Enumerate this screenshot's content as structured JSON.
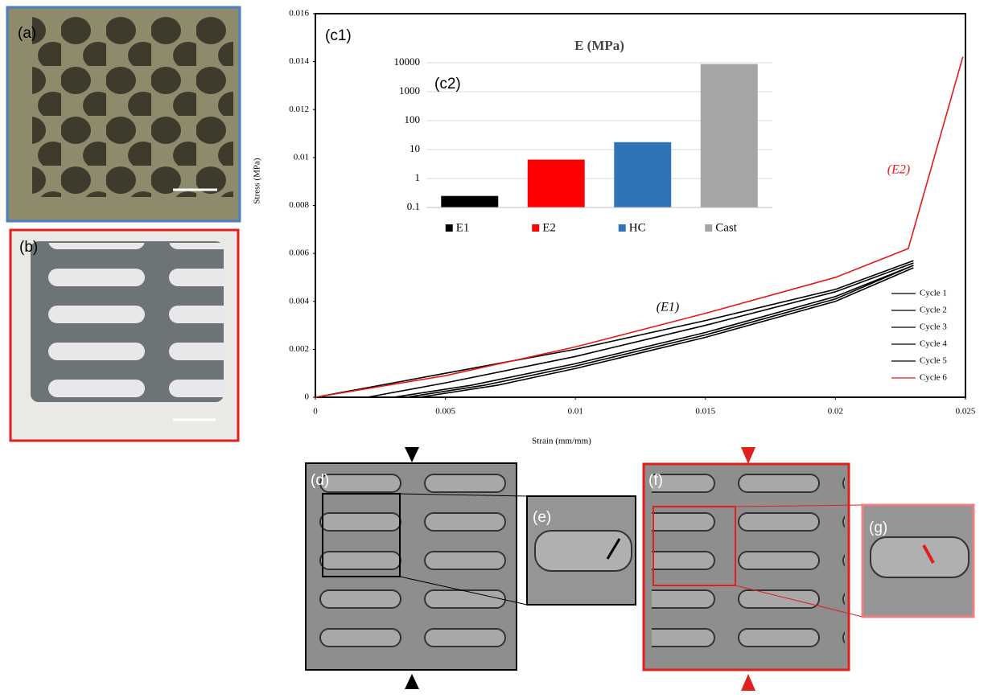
{
  "panel_labels": [
    "(a)",
    "(b)",
    "(d)",
    "(e)",
    "(f)",
    "(g)"
  ],
  "chart_data": [
    {
      "type": "line",
      "xlabel": "Strain (mm/mm)",
      "ylabel": "Stress (MPa)",
      "annotations": [
        "(c1)",
        "(E1)",
        "(E2)"
      ],
      "xlim": [
        0,
        0.025
      ],
      "xticks": [
        0,
        0.005,
        0.01,
        0.015,
        0.02,
        0.025
      ],
      "ylim": [
        0,
        0.016
      ],
      "yticks": [
        0,
        0.002,
        0.004,
        0.006,
        0.008,
        0.01,
        0.012,
        0.014,
        0.016
      ],
      "legend_position": "right",
      "series": [
        {
          "name": "Cycle 1",
          "color": "#000000",
          "x": [
            0,
            0.005,
            0.01,
            0.015,
            0.02,
            0.023
          ],
          "values": [
            0,
            0.001,
            0.002,
            0.0032,
            0.0045,
            0.0057
          ]
        },
        {
          "name": "Cycle 2",
          "color": "#000000",
          "x": [
            0.002,
            0.005,
            0.01,
            0.015,
            0.02,
            0.023
          ],
          "values": [
            0,
            0.0006,
            0.0017,
            0.003,
            0.0044,
            0.0056
          ]
        },
        {
          "name": "Cycle 3",
          "color": "#000000",
          "x": [
            0.003,
            0.006,
            0.01,
            0.015,
            0.02,
            0.023
          ],
          "values": [
            0,
            0.0005,
            0.0014,
            0.0027,
            0.0042,
            0.0055
          ]
        },
        {
          "name": "Cycle 4",
          "color": "#000000",
          "x": [
            0.0035,
            0.0065,
            0.01,
            0.015,
            0.02,
            0.023
          ],
          "values": [
            0,
            0.0005,
            0.0013,
            0.0026,
            0.0041,
            0.0055
          ]
        },
        {
          "name": "Cycle 5",
          "color": "#000000",
          "x": [
            0.004,
            0.007,
            0.01,
            0.015,
            0.02,
            0.023
          ],
          "values": [
            0,
            0.0005,
            0.0012,
            0.0025,
            0.004,
            0.0054
          ]
        },
        {
          "name": "Cycle 6",
          "color": "#e31a1c",
          "x": [
            0,
            0.005,
            0.01,
            0.015,
            0.02,
            0.0228,
            0.0249
          ],
          "values": [
            0,
            0.0009,
            0.0021,
            0.0035,
            0.005,
            0.0062,
            0.0142
          ]
        }
      ]
    },
    {
      "type": "bar",
      "title": "E (MPa)",
      "annotations": [
        "(c2)"
      ],
      "log_scale": true,
      "grid": true,
      "categories": [
        "E1",
        "E2",
        "HC",
        "Cast"
      ],
      "values": [
        0.25,
        4.5,
        18,
        9000
      ],
      "colors": [
        "#000000",
        "#ff0000",
        "#2e75b6",
        "#a5a5a5"
      ],
      "ylim": [
        0.1,
        10000
      ],
      "yticks": [
        0.1,
        1,
        10,
        100,
        1000,
        10000
      ]
    }
  ]
}
